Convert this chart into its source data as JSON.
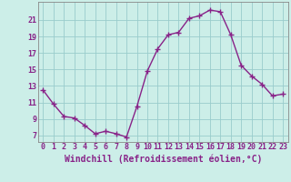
{
  "x": [
    0,
    1,
    2,
    3,
    4,
    5,
    6,
    7,
    8,
    9,
    10,
    11,
    12,
    13,
    14,
    15,
    16,
    17,
    18,
    19,
    20,
    21,
    22,
    23
  ],
  "y": [
    12.5,
    10.8,
    9.3,
    9.1,
    8.2,
    7.2,
    7.5,
    7.2,
    6.8,
    10.5,
    14.8,
    17.5,
    19.2,
    19.5,
    21.2,
    21.5,
    22.2,
    22.0,
    19.2,
    15.5,
    14.2,
    13.2,
    11.8,
    12.0
  ],
  "line_color": "#882288",
  "marker": "+",
  "marker_size": 4,
  "marker_linewidth": 1.0,
  "line_width": 1.0,
  "bg_color": "#cceee8",
  "grid_color": "#99cccc",
  "xlabel": "Windchill (Refroidissement éolien,°C)",
  "xlabel_color": "#882288",
  "xlabel_fontsize": 7,
  "ytick_labels": [
    "7",
    "9",
    "11",
    "13",
    "15",
    "17",
    "19",
    "21"
  ],
  "ytick_values": [
    7,
    9,
    11,
    13,
    15,
    17,
    19,
    21
  ],
  "ylim": [
    6.2,
    23.2
  ],
  "xlim": [
    -0.5,
    23.5
  ],
  "xtick_values": [
    0,
    1,
    2,
    3,
    4,
    5,
    6,
    7,
    8,
    9,
    10,
    11,
    12,
    13,
    14,
    15,
    16,
    17,
    18,
    19,
    20,
    21,
    22,
    23
  ],
  "xtick_labels": [
    "0",
    "1",
    "2",
    "3",
    "4",
    "5",
    "6",
    "7",
    "8",
    "9",
    "10",
    "11",
    "12",
    "13",
    "14",
    "15",
    "16",
    "17",
    "18",
    "19",
    "20",
    "21",
    "22",
    "23"
  ],
  "tick_fontsize": 6,
  "spine_color": "#888888"
}
